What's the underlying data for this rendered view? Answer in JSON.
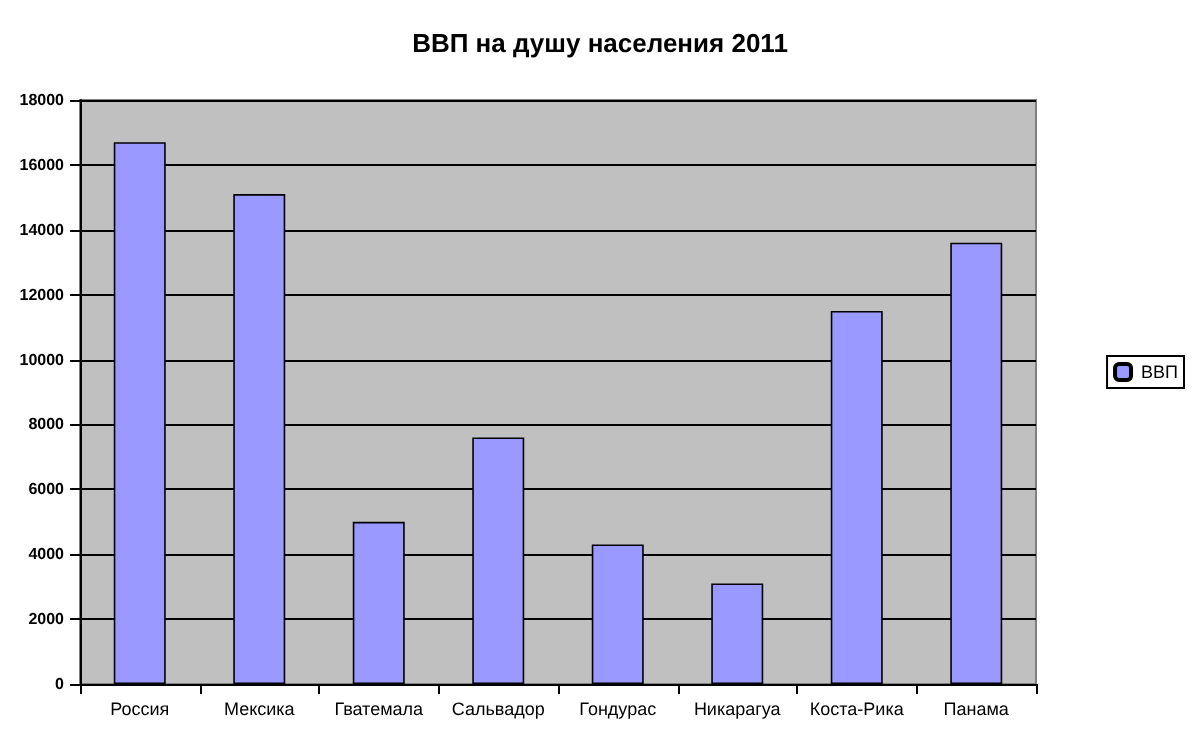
{
  "chart_data": {
    "type": "bar",
    "title": "ВВП на душу населения 2011",
    "categories": [
      "Россия",
      "Мексика",
      "Гватемала",
      "Сальвадор",
      "Гондурас",
      "Никарагуа",
      "Коста-Рика",
      "Панама"
    ],
    "series": [
      {
        "name": "ВВП",
        "color": "#9999ff",
        "values": [
          16700,
          15100,
          5000,
          7600,
          4300,
          3100,
          11500,
          13600
        ]
      }
    ],
    "ylim": [
      0,
      18000
    ],
    "yticks": [
      0,
      2000,
      4000,
      6000,
      8000,
      10000,
      12000,
      14000,
      16000,
      18000
    ],
    "grid": "y",
    "legend": "right"
  }
}
